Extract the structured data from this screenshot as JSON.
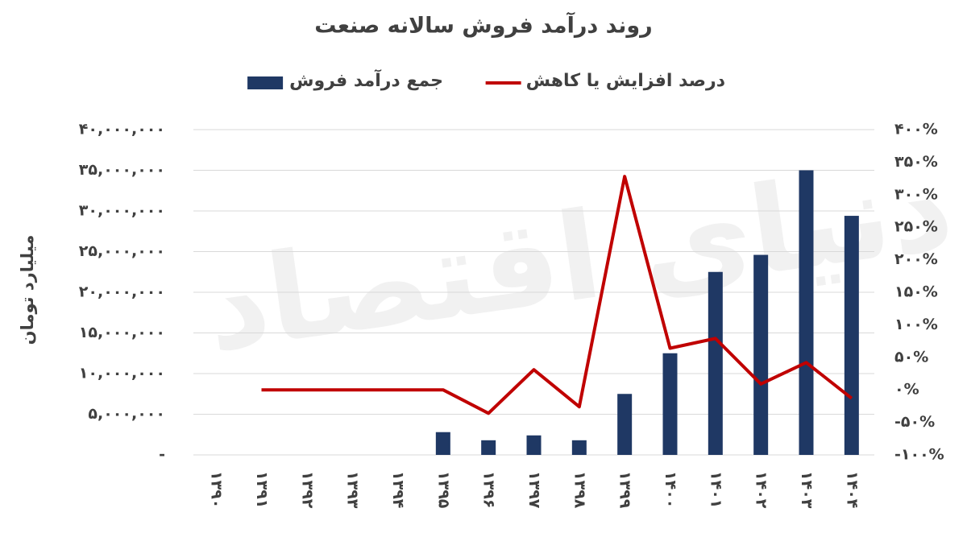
{
  "chart_data": {
    "type": "bar",
    "title": "روند درآمد فروش سالانه صنعت",
    "watermark": "دنیای اقتصاد",
    "y_axis_label": "میلیارد تومان",
    "categories": [
      "۱۳۹۰",
      "۱۳۹۱",
      "۱۳۹۲",
      "۱۳۹۳",
      "۱۳۹۴",
      "۱۳۹۵",
      "۱۳۹۶",
      "۱۳۹۷",
      "۱۳۹۸",
      "۱۳۹۹",
      "۱۴۰۰",
      "۱۴۰۱",
      "۱۴۰۲",
      "۱۴۰۳",
      "۱۴۰۴"
    ],
    "series": [
      {
        "name": "جمع درآمد فروش",
        "type": "bar",
        "color": "#1f3864",
        "values": [
          null,
          null,
          null,
          null,
          null,
          2800000,
          1800000,
          2400000,
          1800000,
          7500000,
          12500000,
          22500000,
          24600000,
          35000000,
          29400000
        ]
      },
      {
        "name": "درصد افزایش یا کاهش",
        "type": "line",
        "axis": "y2",
        "color": "#c00000",
        "values": [
          null,
          0,
          0,
          0,
          0,
          0,
          -36,
          31,
          -26,
          328,
          64,
          79,
          9,
          42,
          -13
        ]
      }
    ],
    "ylim": [
      0,
      40000000
    ],
    "yticks": [
      {
        "value": 0,
        "label": "-"
      },
      {
        "value": 5000000,
        "label": "۵,۰۰۰,۰۰۰"
      },
      {
        "value": 10000000,
        "label": "۱۰,۰۰۰,۰۰۰"
      },
      {
        "value": 15000000,
        "label": "۱۵,۰۰۰,۰۰۰"
      },
      {
        "value": 20000000,
        "label": "۲۰,۰۰۰,۰۰۰"
      },
      {
        "value": 25000000,
        "label": "۲۵,۰۰۰,۰۰۰"
      },
      {
        "value": 30000000,
        "label": "۳۰,۰۰۰,۰۰۰"
      },
      {
        "value": 35000000,
        "label": "۳۵,۰۰۰,۰۰۰"
      },
      {
        "value": 40000000,
        "label": "۴۰,۰۰۰,۰۰۰"
      }
    ],
    "y2lim": [
      -100,
      400
    ],
    "y2ticks": [
      {
        "value": -100,
        "label": "-۱۰۰%"
      },
      {
        "value": -50,
        "label": "-۵۰%"
      },
      {
        "value": 0,
        "label": "۰%"
      },
      {
        "value": 50,
        "label": "۵۰%"
      },
      {
        "value": 100,
        "label": "۱۰۰%"
      },
      {
        "value": 150,
        "label": "۱۵۰%"
      },
      {
        "value": 200,
        "label": "۲۰۰%"
      },
      {
        "value": 250,
        "label": "۲۵۰%"
      },
      {
        "value": 300,
        "label": "۳۰۰%"
      },
      {
        "value": 350,
        "label": "۳۵۰%"
      },
      {
        "value": 400,
        "label": "۴۰۰%"
      }
    ],
    "grid": true,
    "legend": "top"
  }
}
